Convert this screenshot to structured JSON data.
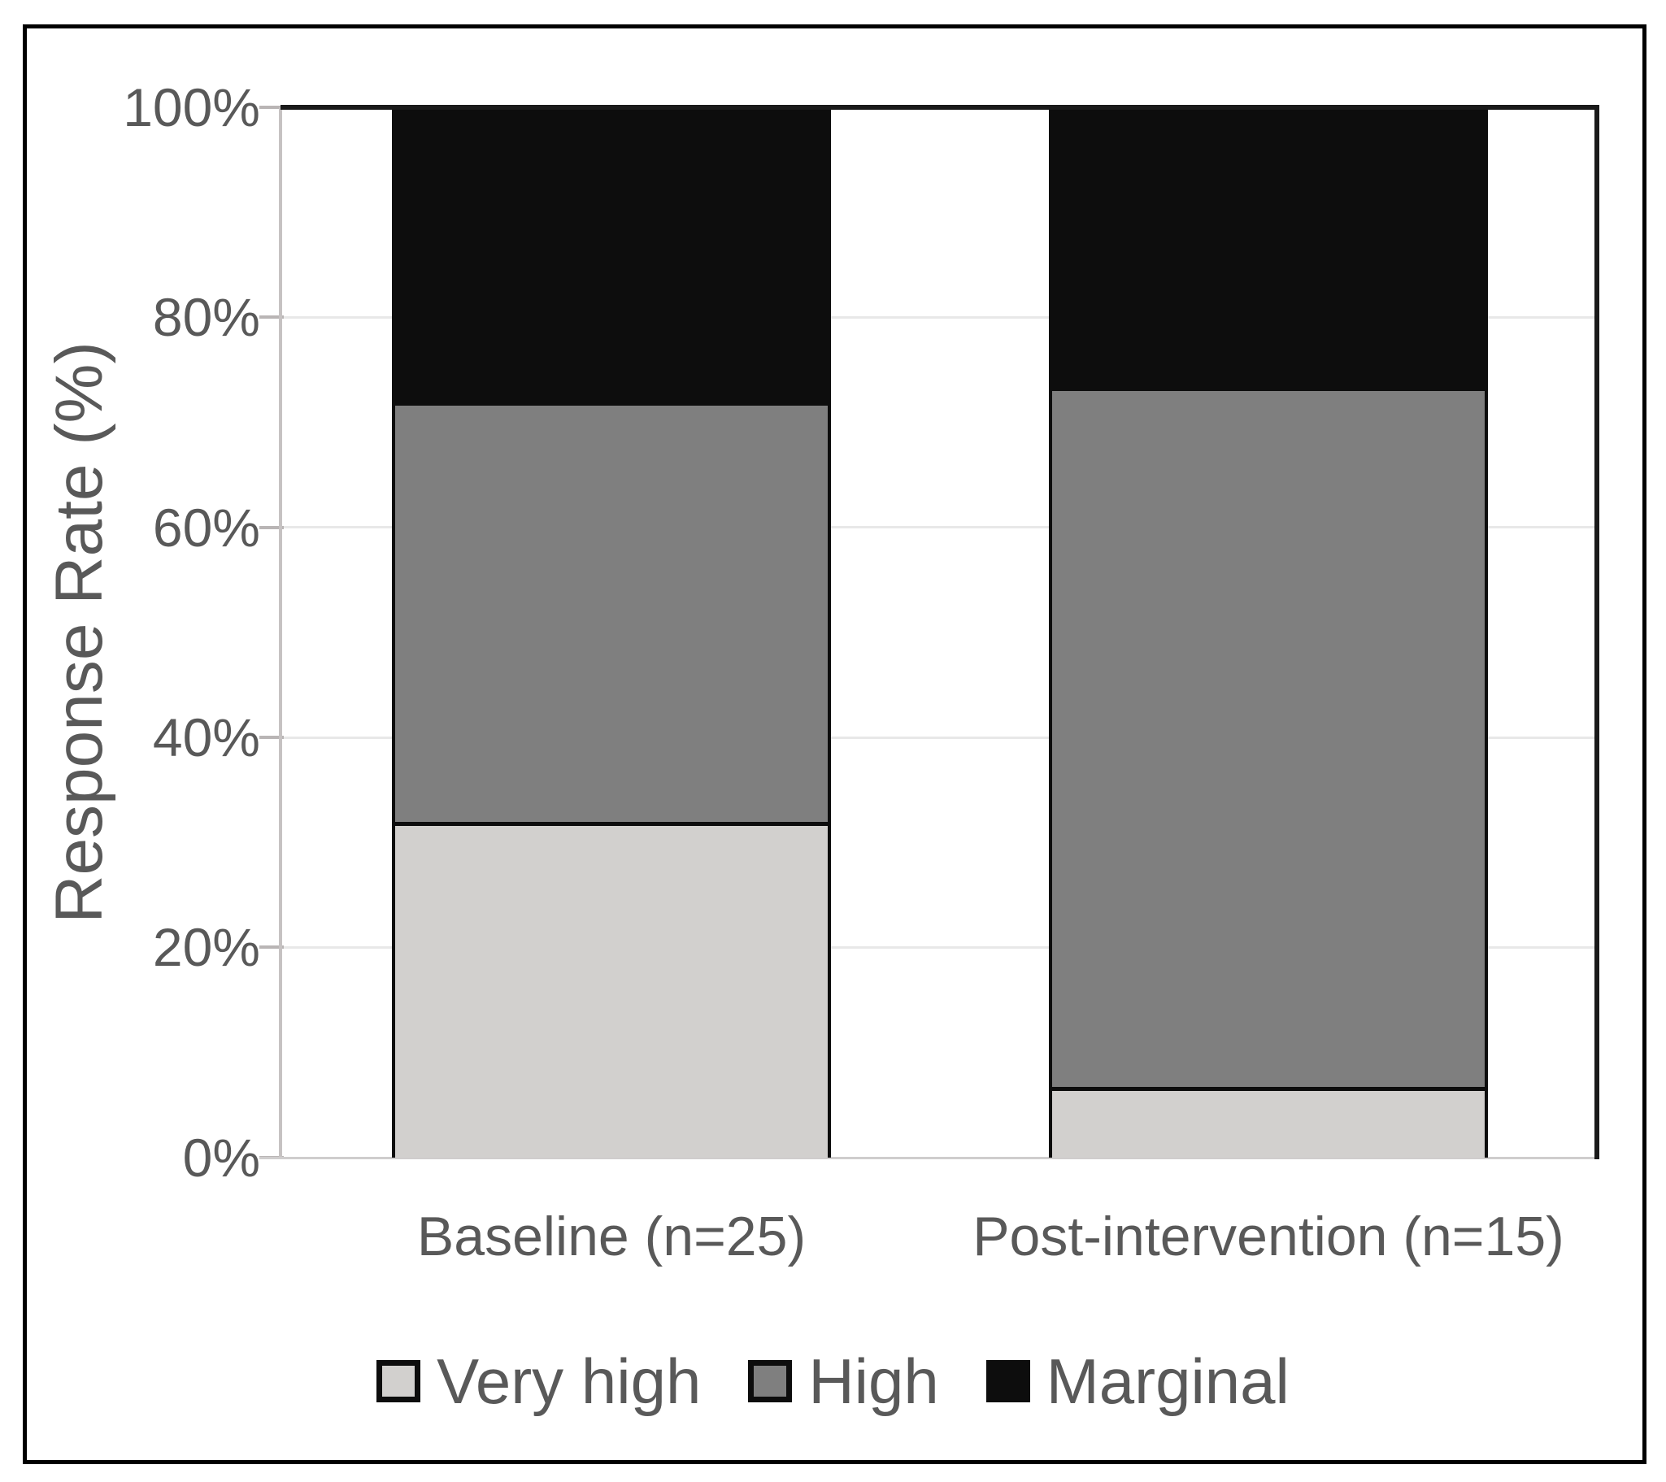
{
  "chart_data": {
    "type": "bar",
    "stacked": true,
    "orientation": "vertical",
    "title": "",
    "xlabel": "",
    "ylabel": "Response Rate (%)",
    "ylim": [
      0,
      100
    ],
    "yticks": [
      "0%",
      "20%",
      "40%",
      "60%",
      "80%",
      "100%"
    ],
    "grid": true,
    "legend_position": "bottom",
    "categories": [
      "Baseline (n=25)",
      "Post-intervention (n=15)"
    ],
    "series": [
      {
        "name": "Very high",
        "color": "#d2d0ce",
        "values": [
          32,
          6.7
        ]
      },
      {
        "name": "High",
        "color": "#7f7f7f",
        "values": [
          40,
          66.7
        ]
      },
      {
        "name": "Marginal",
        "color": "#0d0d0d",
        "values": [
          28,
          26.6
        ]
      }
    ],
    "style_colors": {
      "text": "#595959",
      "gridline": "#e8e8e8",
      "axis_line": "#c6c2c2",
      "plot_border": "#1a1a1a",
      "figure_border": "#000000",
      "background": "#ffffff"
    }
  }
}
